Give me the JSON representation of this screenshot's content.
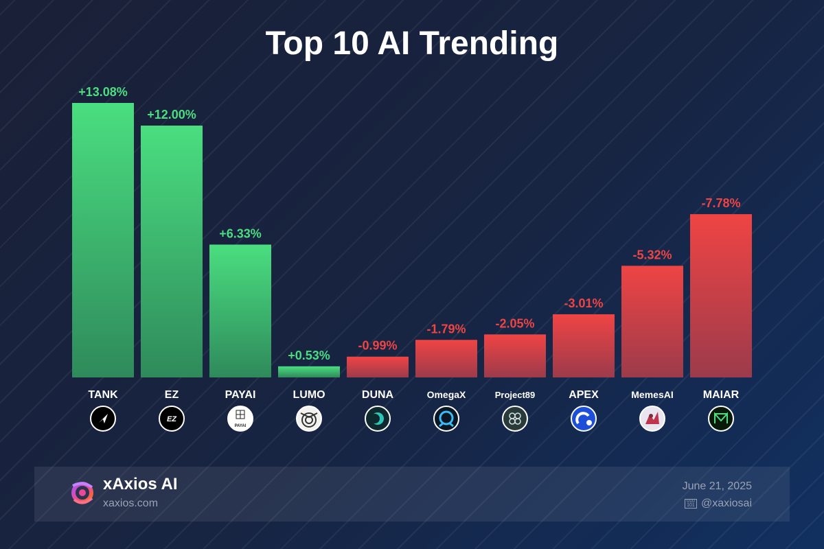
{
  "title": "Top 10 AI Trending",
  "colors": {
    "positive": "#4ade80",
    "positive_dark": "#2f8a5b",
    "negative": "#ef4444",
    "negative_dark": "#9c3b4b",
    "text": "#ffffff",
    "muted": "#9aa3b5"
  },
  "chart_data": {
    "type": "bar",
    "title": "Top 10 AI Trending",
    "xlabel": "",
    "ylabel": "",
    "categories": [
      "TANK",
      "EZ",
      "PAYAI",
      "LUMO",
      "DUNA",
      "OmegaX",
      "Project89",
      "APEX",
      "MemesAI",
      "MAIAR"
    ],
    "values": [
      13.08,
      12.0,
      6.33,
      0.53,
      -0.99,
      -1.79,
      -2.05,
      -3.01,
      -5.32,
      -7.78
    ],
    "labels": [
      "+13.08%",
      "+12.00%",
      "+6.33%",
      "+0.53%",
      "-0.99%",
      "-1.79%",
      "-2.05%",
      "-3.01%",
      "-5.32%",
      "-7.78%"
    ],
    "bar_height_basis": "absolute value",
    "grid": false,
    "legend": "none"
  },
  "token_icons": [
    {
      "name": "tank-icon",
      "bg": "#000000",
      "fg": "#ffffff",
      "glyph": "arrow"
    },
    {
      "name": "ez-icon",
      "bg": "#000000",
      "fg": "#ffffff",
      "glyph": "text",
      "text": "EZ"
    },
    {
      "name": "payai-icon",
      "bg": "#ffffff",
      "fg": "#222222",
      "glyph": "payai",
      "text": "PAYAI"
    },
    {
      "name": "lumo-icon",
      "bg": "#f2f2ee",
      "fg": "#333333",
      "glyph": "owl"
    },
    {
      "name": "duna-icon",
      "bg": "#0e2a2e",
      "fg": "#2ec4b6",
      "glyph": "moon"
    },
    {
      "name": "omegax-icon",
      "bg": "#0b1724",
      "fg": "#38bdf8",
      "glyph": "omega"
    },
    {
      "name": "project89-icon",
      "bg": "#2a3a3a",
      "fg": "#d6e2e2",
      "glyph": "dots"
    },
    {
      "name": "apex-icon",
      "bg": "#1e4fd8",
      "fg": "#ffffff",
      "glyph": "apex"
    },
    {
      "name": "memesai-icon",
      "bg": "#e8e4f0",
      "fg": "#c0334d",
      "glyph": "creature"
    },
    {
      "name": "maiar-icon",
      "bg": "#0a1a0a",
      "fg": "#4ade80",
      "glyph": "m"
    }
  ],
  "footer": {
    "brand": "xAxios AI",
    "site": "xaxios.com",
    "date": "June 21, 2025",
    "handle": "@xaxiosai",
    "x_icon_text": "010 101"
  }
}
